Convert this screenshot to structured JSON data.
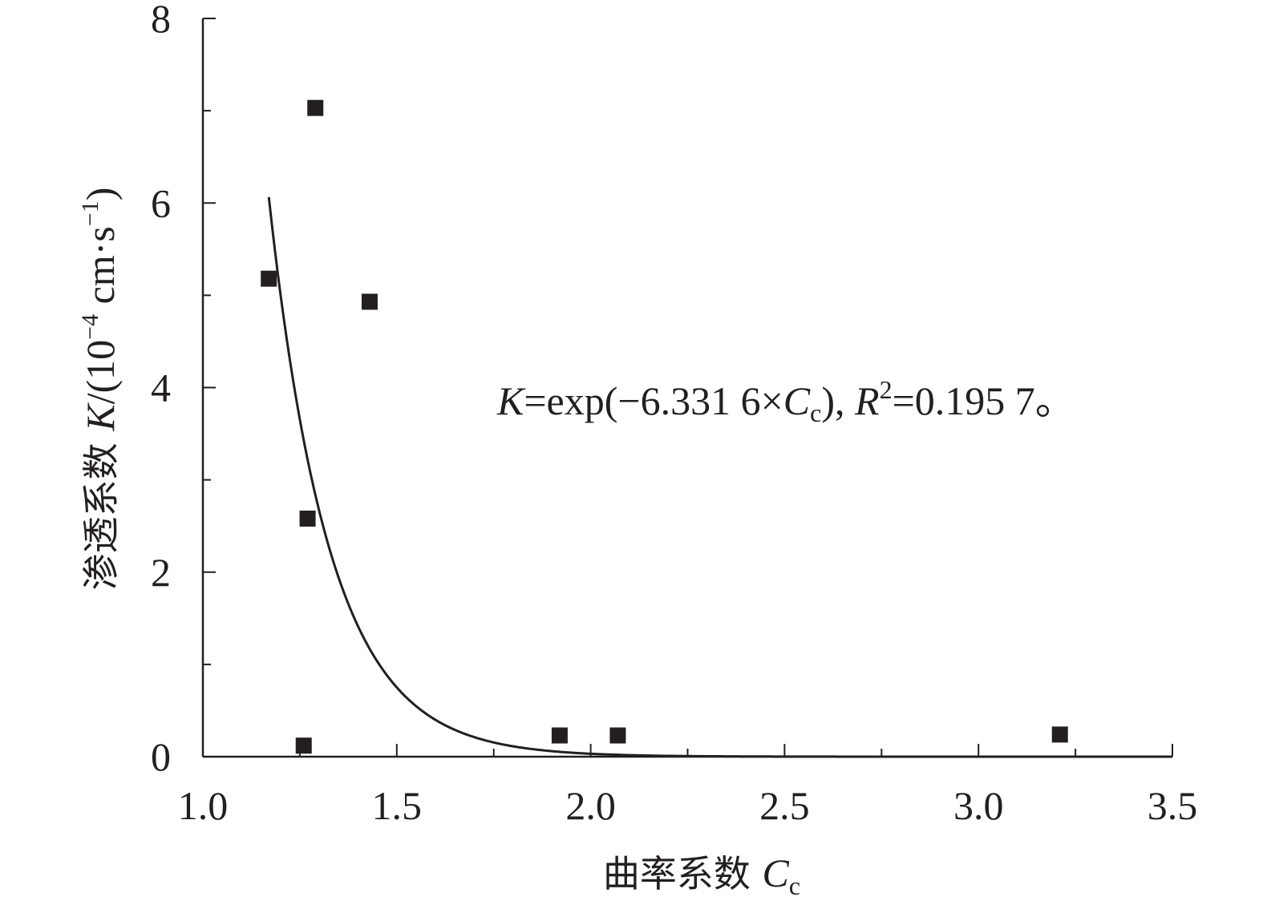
{
  "chart_data": {
    "type": "scatter",
    "xlabel": {
      "text": "曲率系数 ",
      "var": "C",
      "sub": "c"
    },
    "ylabel": {
      "text": "渗透系数 ",
      "var": "K",
      "unit_open": "/(10",
      "exp1": "−4",
      "unit_mid": " cm·s",
      "exp2": "−1",
      "unit_close": ")"
    },
    "xlim": [
      1.0,
      3.5
    ],
    "ylim": [
      0,
      8
    ],
    "x_major_ticks": [
      1.0,
      1.5,
      2.0,
      2.5,
      3.0,
      3.5
    ],
    "x_tick_labels": [
      "1.0",
      "1.5",
      "2.0",
      "2.5",
      "3.0",
      "3.5"
    ],
    "x_minor_ticks": [
      1.25,
      1.75,
      2.25,
      2.75,
      3.25
    ],
    "y_major_ticks": [
      0,
      2,
      4,
      6,
      8
    ],
    "y_tick_labels": [
      "0",
      "2",
      "4",
      "6",
      "8"
    ],
    "y_minor_ticks": [
      1,
      3,
      5,
      7
    ],
    "points": [
      {
        "x": 1.17,
        "y": 5.18
      },
      {
        "x": 1.26,
        "y": 0.12
      },
      {
        "x": 1.27,
        "y": 2.58
      },
      {
        "x": 1.29,
        "y": 7.03
      },
      {
        "x": 1.43,
        "y": 4.93
      },
      {
        "x": 1.92,
        "y": 0.23
      },
      {
        "x": 2.07,
        "y": 0.23
      },
      {
        "x": 3.21,
        "y": 0.24
      }
    ],
    "fit": {
      "model": "exp",
      "amplitude": 10000,
      "rate": -6.3316,
      "x_start": 1.17,
      "x_end": 3.5
    },
    "annotation": {
      "p1": "K",
      "p2": "=exp(−6.331 6×",
      "p3": "C",
      "p4": "c",
      "p5": "), ",
      "p6": "R",
      "p7": "2",
      "p8": "=0.195 7。"
    },
    "grid": false,
    "legend": "none",
    "colors": {
      "marker": "#231f20",
      "line": "#231f20",
      "axis": "#231f20"
    }
  }
}
